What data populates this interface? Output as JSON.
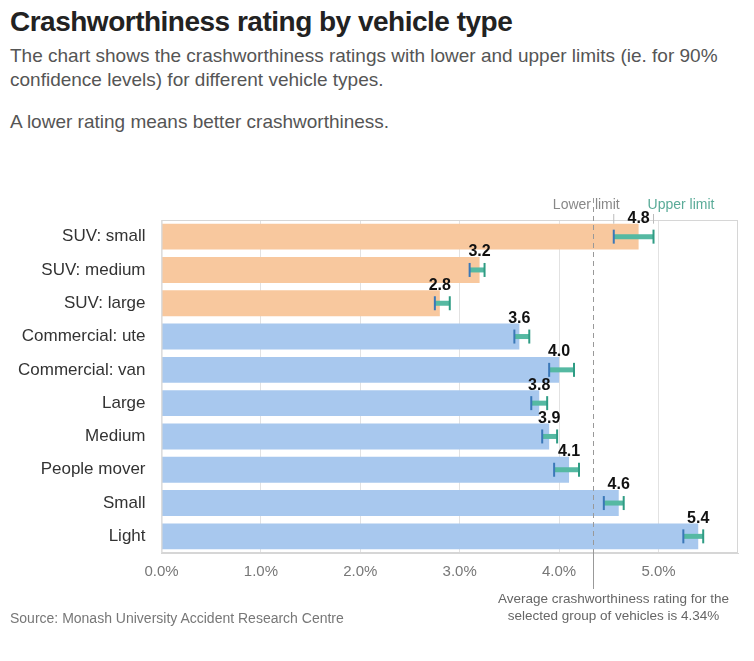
{
  "chart_data": {
    "type": "bar",
    "orientation": "horizontal",
    "title": "Crashworthiness rating by vehicle type",
    "subtitle": [
      "The chart shows the crashworthiness ratings with lower and upper limits (ie. for 90% confidence levels) for different vehicle types.",
      "A lower rating means better crashworthiness."
    ],
    "categories": [
      "SUV: small",
      "SUV: medium",
      "SUV: large",
      "Commercial: ute",
      "Commercial: van",
      "Large",
      "Medium",
      "People mover",
      "Small",
      "Light"
    ],
    "values": [
      4.8,
      3.2,
      2.8,
      3.6,
      4.0,
      3.8,
      3.9,
      4.1,
      4.6,
      5.4
    ],
    "value_labels": [
      "4.8",
      "3.2",
      "2.8",
      "3.6",
      "4.0",
      "3.8",
      "3.9",
      "4.1",
      "4.6",
      "5.4"
    ],
    "lower_limits": [
      4.55,
      3.1,
      2.75,
      3.55,
      3.9,
      3.72,
      3.83,
      3.95,
      4.45,
      5.25
    ],
    "upper_limits": [
      4.95,
      3.25,
      2.9,
      3.7,
      4.15,
      3.88,
      3.98,
      4.2,
      4.65,
      5.45
    ],
    "limit_labels": [
      "Lower limit",
      "Upper limit"
    ],
    "colors": [
      "#f8c89e",
      "#f8c89e",
      "#f8c89e",
      "#a8c8ee",
      "#a8c8ee",
      "#a8c8ee",
      "#a8c8ee",
      "#a8c8ee",
      "#a8c8ee",
      "#a8c8ee"
    ],
    "average": {
      "value": 4.34,
      "label": [
        "Average crashworthiness rating for the",
        "selected group of vehicles is 4.34%"
      ]
    },
    "xlim": [
      0,
      5.8
    ],
    "xticks": [
      {
        "value": 0,
        "label": "0.0%"
      },
      {
        "value": 1,
        "label": "1.0%"
      },
      {
        "value": 2,
        "label": "2.0%"
      },
      {
        "value": 3,
        "label": "3.0%"
      },
      {
        "value": 4,
        "label": "4.0%"
      },
      {
        "value": 5,
        "label": "5.0%"
      }
    ],
    "grid": true,
    "data_labels": true,
    "legend": "none",
    "source": "Source: Monash University Accident Research Centre"
  }
}
